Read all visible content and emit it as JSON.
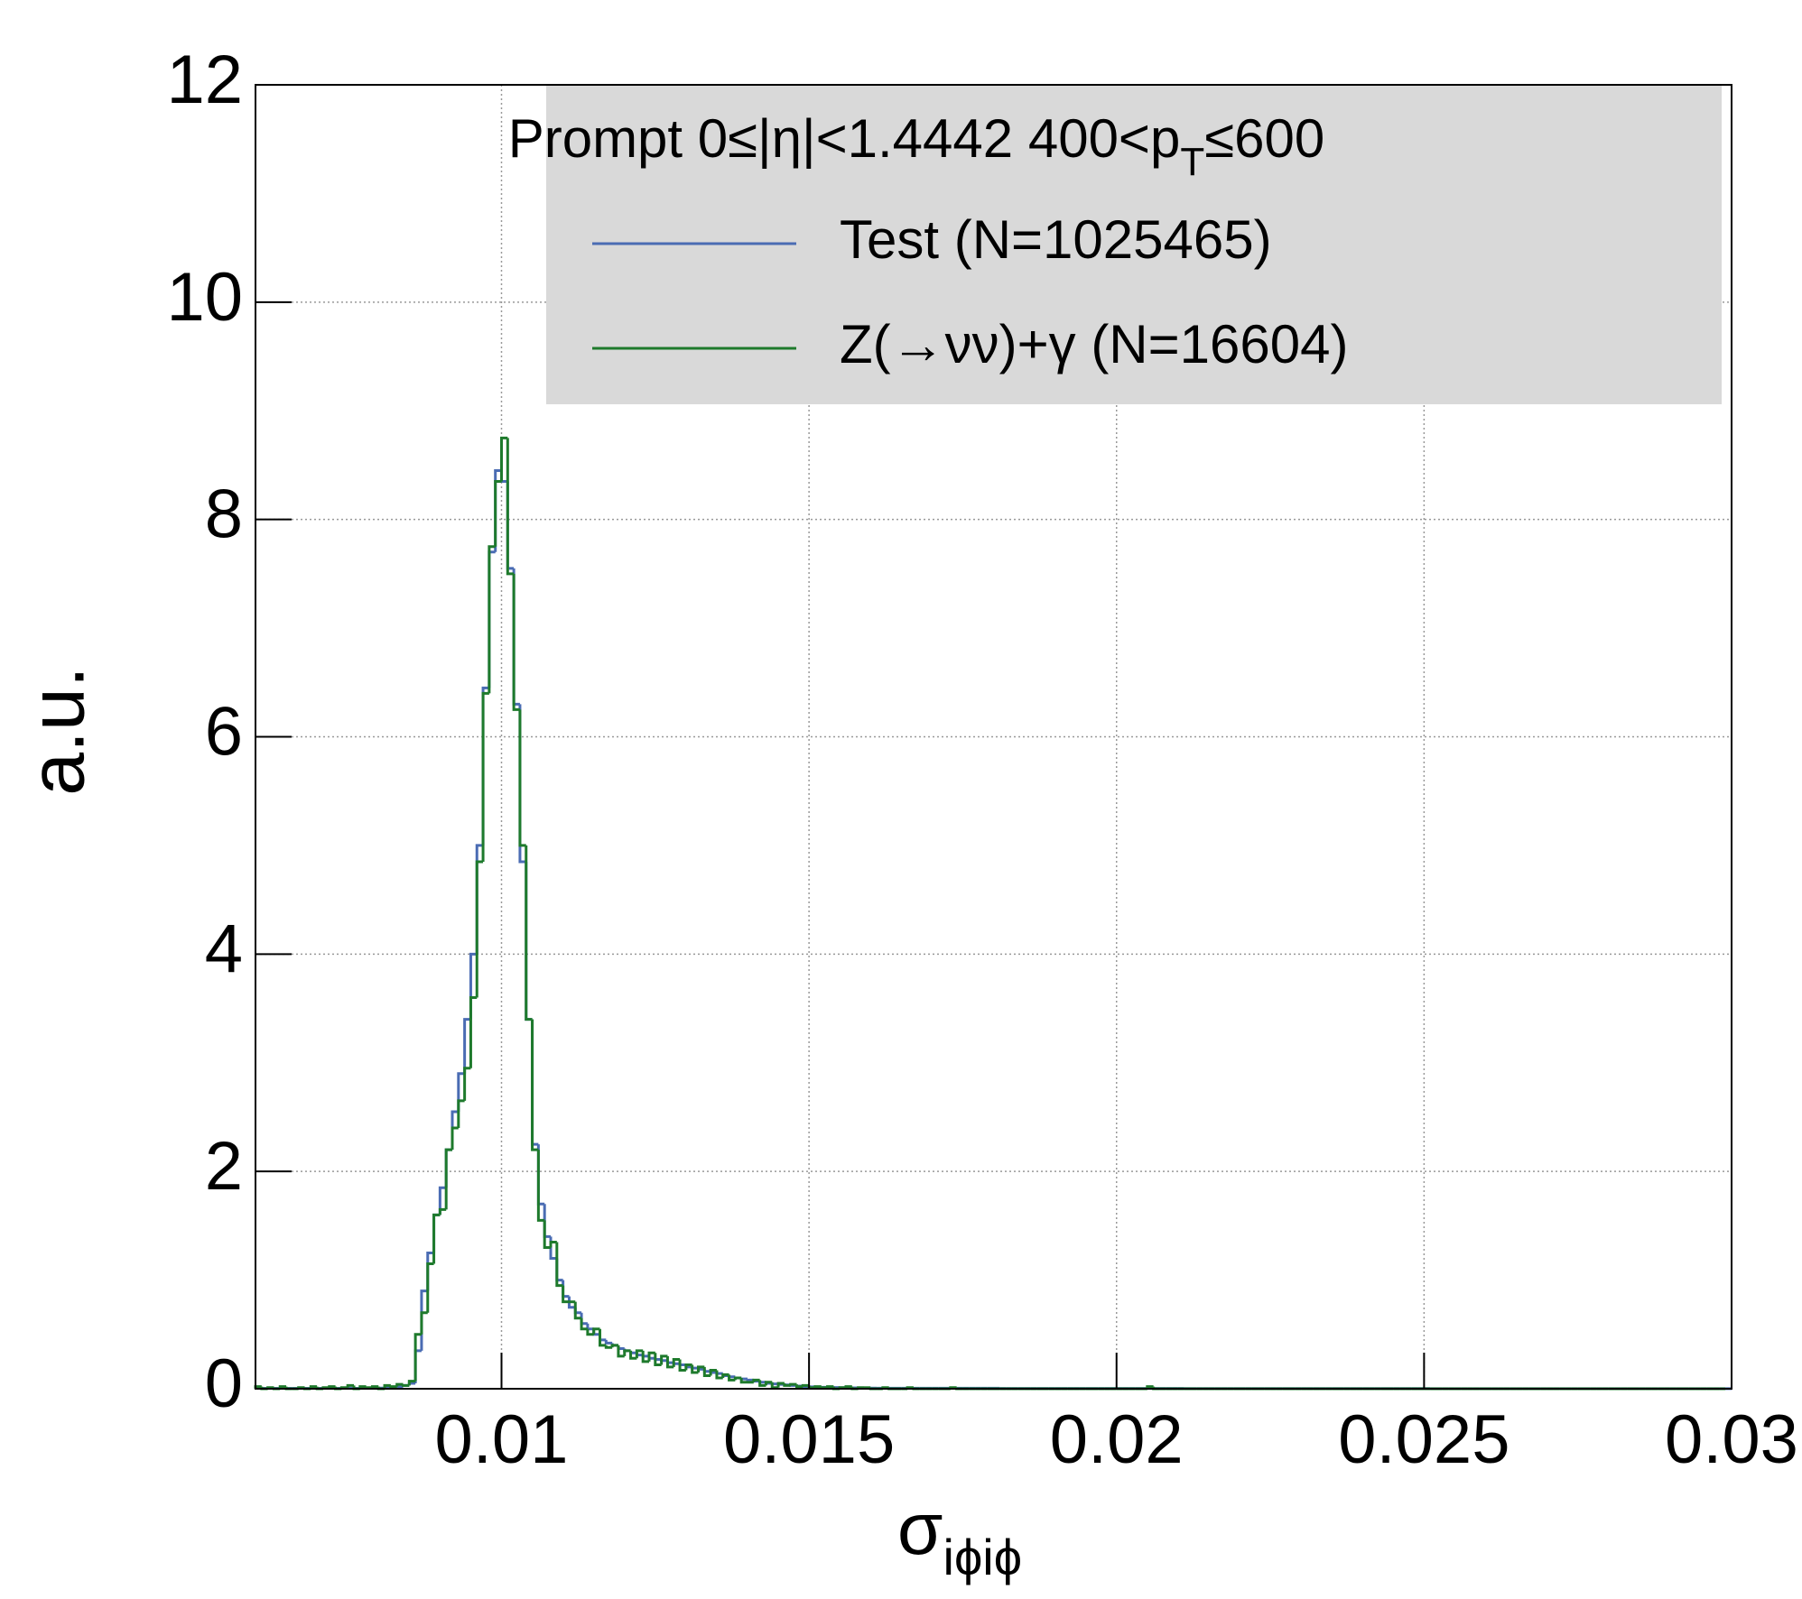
{
  "chart_data": {
    "type": "histogram",
    "ylabel": "a.u.",
    "xlabel": "σ",
    "xlabel_sub": "iϕiϕ",
    "legend_header": "Prompt  0≤|η|<1.4442  400<p",
    "legend_header_sub": "T",
    "legend_header_tail": "≤600",
    "xlim": [
      0.006,
      0.03
    ],
    "ylim": [
      0,
      12
    ],
    "xticks": [
      0.01,
      0.015,
      0.02,
      0.025,
      0.03
    ],
    "yticks": [
      0,
      2,
      4,
      6,
      8,
      10,
      12
    ],
    "grid": true,
    "bins": [
      0.006,
      0.0061,
      0.0062,
      0.0063,
      0.0064,
      0.0065,
      0.0066,
      0.0067,
      0.0068,
      0.0069,
      0.007,
      0.0071,
      0.0072,
      0.0073,
      0.0074,
      0.0075,
      0.0076,
      0.0077,
      0.0078,
      0.0079,
      0.008,
      0.0081,
      0.0082,
      0.0083,
      0.0084,
      0.0085,
      0.0086,
      0.0087,
      0.0088,
      0.0089,
      0.009,
      0.0091,
      0.0092,
      0.0093,
      0.0094,
      0.0095,
      0.0096,
      0.0097,
      0.0098,
      0.0099,
      0.01,
      0.0101,
      0.0102,
      0.0103,
      0.0104,
      0.0105,
      0.0106,
      0.0107,
      0.0108,
      0.0109,
      0.011,
      0.0111,
      0.0112,
      0.0113,
      0.0114,
      0.0115,
      0.0116,
      0.0117,
      0.0118,
      0.0119,
      0.012,
      0.0121,
      0.0122,
      0.0123,
      0.0124,
      0.0125,
      0.0126,
      0.0127,
      0.0128,
      0.0129,
      0.013,
      0.0131,
      0.0132,
      0.0133,
      0.0134,
      0.0135,
      0.0136,
      0.0137,
      0.0138,
      0.0139,
      0.014,
      0.0141,
      0.0142,
      0.0143,
      0.0144,
      0.0145,
      0.0146,
      0.0147,
      0.0148,
      0.0149,
      0.015,
      0.0151,
      0.0152,
      0.0153,
      0.0154,
      0.0155,
      0.0156,
      0.0157,
      0.0158,
      0.0159,
      0.016,
      0.0161,
      0.0162,
      0.0163,
      0.0164,
      0.0165,
      0.0166,
      0.0167,
      0.0168,
      0.0169,
      0.017,
      0.0171,
      0.0172,
      0.0173,
      0.0174,
      0.0175,
      0.0176,
      0.0177,
      0.0178,
      0.0179,
      0.018,
      0.0181,
      0.0182,
      0.0183,
      0.0184,
      0.0185,
      0.0186,
      0.0187,
      0.0188,
      0.0189,
      0.019,
      0.0191,
      0.0192,
      0.0193,
      0.0194,
      0.0195,
      0.0196,
      0.0197,
      0.0198,
      0.0199,
      0.02,
      0.0201,
      0.0202,
      0.0203,
      0.0204,
      0.0205,
      0.0206,
      0.0207,
      0.0208,
      0.0209,
      0.021,
      0.0211,
      0.0212,
      0.0213,
      0.0214,
      0.0215,
      0.0216,
      0.0217,
      0.0218,
      0.0219,
      0.022,
      0.0221,
      0.0222,
      0.0223,
      0.0224,
      0.0225,
      0.0226,
      0.0227,
      0.0228,
      0.0229,
      0.023,
      0.0231,
      0.0232,
      0.0233,
      0.0234,
      0.0235,
      0.0236,
      0.0237,
      0.0238,
      0.0239,
      0.024,
      0.0241,
      0.0242,
      0.0243,
      0.0244,
      0.0245,
      0.0246,
      0.0247,
      0.0248,
      0.0249,
      0.025,
      0.0251,
      0.0252,
      0.0253,
      0.0254,
      0.0255,
      0.0256,
      0.0257,
      0.0258,
      0.0259,
      0.026,
      0.0261,
      0.0262,
      0.0263,
      0.0264,
      0.0265,
      0.0266,
      0.0267,
      0.0268,
      0.0269,
      0.027,
      0.0271,
      0.0272,
      0.0273,
      0.0274,
      0.0275,
      0.0276,
      0.0277,
      0.0278,
      0.0279,
      0.028,
      0.0281,
      0.0282,
      0.0283,
      0.0284,
      0.0285,
      0.0286,
      0.0287,
      0.0288,
      0.0289,
      0.029,
      0.0291,
      0.0292,
      0.0293,
      0.0294,
      0.0295,
      0.0296,
      0.0297,
      0.0298,
      0.0299,
      0.03
    ],
    "series": [
      {
        "name": "Test (N=1025465)",
        "color": "#4a6cb3",
        "values": [
          0.004,
          0.004,
          0.004,
          0.004,
          0.004,
          0.004,
          0.004,
          0.004,
          0.004,
          0.004,
          0.004,
          0.004,
          0.004,
          0.004,
          0.004,
          0.004,
          0.004,
          0.004,
          0.004,
          0.004,
          0.006,
          0.01,
          0.015,
          0.02,
          0.03,
          0.05,
          0.35,
          0.9,
          1.25,
          1.6,
          1.85,
          2.2,
          2.55,
          2.9,
          3.4,
          4.0,
          5.0,
          6.45,
          7.7,
          8.45,
          8.35,
          7.55,
          6.3,
          4.85,
          3.4,
          2.25,
          1.7,
          1.4,
          1.2,
          1.0,
          0.85,
          0.75,
          0.7,
          0.6,
          0.55,
          0.5,
          0.45,
          0.42,
          0.4,
          0.37,
          0.35,
          0.33,
          0.31,
          0.3,
          0.28,
          0.27,
          0.26,
          0.24,
          0.23,
          0.22,
          0.2,
          0.19,
          0.18,
          0.16,
          0.15,
          0.14,
          0.12,
          0.11,
          0.1,
          0.09,
          0.08,
          0.07,
          0.06,
          0.05,
          0.045,
          0.04,
          0.035,
          0.03,
          0.025,
          0.02,
          0.018,
          0.016,
          0.014,
          0.012,
          0.011,
          0.01,
          0.009,
          0.008,
          0.007,
          0.006,
          0.006,
          0.005,
          0.005,
          0.005,
          0.005,
          0.005,
          0.005,
          0.005,
          0.005,
          0.005,
          0.005,
          0.005,
          0.005,
          0.005,
          0.005,
          0.005,
          0.005,
          0.005,
          0.005,
          0.005,
          0.005,
          0.003,
          0.003,
          0.003,
          0.003,
          0.003,
          0.003,
          0.003,
          0.003,
          0.003,
          0.003,
          0.003,
          0.003,
          0.003,
          0.003,
          0.003,
          0.003,
          0.003,
          0.003,
          0.003,
          0.003,
          0.003,
          0.003,
          0.003,
          0.003,
          0.003,
          0.003,
          0.003,
          0.003,
          0.003,
          0.003,
          0.002,
          0.002,
          0.002,
          0.002,
          0.002,
          0.002,
          0.002,
          0.002,
          0.002,
          0.002,
          0.002,
          0.002,
          0.002,
          0.002,
          0.002,
          0.002,
          0.002,
          0.002,
          0.002,
          0.002,
          0.002,
          0.002,
          0.002,
          0.002,
          0.002,
          0.002,
          0.002,
          0.002,
          0.002,
          0.002,
          0.002,
          0.002,
          0.002,
          0.002,
          0.002,
          0.002,
          0.002,
          0.002,
          0.002,
          0.002,
          0.001,
          0.001,
          0.001,
          0.001,
          0.001,
          0.001,
          0.001,
          0.001,
          0.001,
          0.001,
          0.001,
          0.001,
          0.001,
          0.001,
          0.001,
          0.001,
          0.001,
          0.001,
          0.001,
          0.001,
          0.001,
          0.001,
          0.001,
          0.001,
          0.001,
          0.001,
          0.001,
          0.001,
          0.001,
          0.001,
          0.001,
          0.001,
          0.001,
          0.001,
          0.001,
          0.001,
          0.001,
          0.001,
          0.001,
          0.001,
          0.001,
          0.001,
          0.001,
          0.001,
          0.001,
          0.001,
          0.001,
          0.001,
          0.001
        ]
      },
      {
        "name": "Z(→νν)+γ (N=16604)",
        "color": "#1e7a2c",
        "values": [
          0.02,
          0,
          0.01,
          0,
          0.02,
          0,
          0,
          0.01,
          0,
          0.02,
          0,
          0.01,
          0.02,
          0,
          0.01,
          0.03,
          0,
          0.02,
          0.01,
          0.02,
          0,
          0.03,
          0.02,
          0.04,
          0.03,
          0.07,
          0.5,
          0.7,
          1.15,
          1.6,
          1.65,
          2.2,
          2.4,
          2.65,
          2.95,
          3.6,
          4.85,
          6.4,
          7.75,
          8.35,
          8.75,
          7.5,
          6.25,
          5.0,
          3.4,
          2.2,
          1.55,
          1.3,
          1.35,
          0.95,
          0.8,
          0.8,
          0.65,
          0.55,
          0.5,
          0.55,
          0.4,
          0.38,
          0.4,
          0.3,
          0.35,
          0.28,
          0.35,
          0.25,
          0.33,
          0.22,
          0.3,
          0.2,
          0.27,
          0.17,
          0.22,
          0.15,
          0.2,
          0.12,
          0.17,
          0.1,
          0.13,
          0.08,
          0.1,
          0.06,
          0.06,
          0.08,
          0.03,
          0.06,
          0.01,
          0.05,
          0.03,
          0.04,
          0.02,
          0.03,
          0.01,
          0.02,
          0.01,
          0.02,
          0,
          0.01,
          0.02,
          0,
          0.01,
          0.01,
          0,
          0,
          0.01,
          0,
          0,
          0,
          0.01,
          0,
          0,
          0,
          0,
          0,
          0,
          0.01,
          0,
          0,
          0,
          0,
          0,
          0,
          0,
          0,
          0,
          0,
          0,
          0,
          0,
          0,
          0,
          0,
          0,
          0,
          0,
          0,
          0,
          0,
          0,
          0,
          0,
          0,
          0,
          0,
          0,
          0,
          0,
          0.02,
          0,
          0,
          0,
          0,
          0,
          0,
          0,
          0,
          0,
          0,
          0,
          0,
          0,
          0,
          0,
          0,
          0,
          0,
          0,
          0,
          0,
          0,
          0,
          0,
          0,
          0,
          0,
          0,
          0,
          0,
          0,
          0,
          0,
          0,
          0,
          0,
          0,
          0,
          0,
          0,
          0,
          0,
          0,
          0,
          0,
          0,
          0,
          0,
          0,
          0,
          0,
          0,
          0,
          0,
          0,
          0,
          0,
          0,
          0,
          0,
          0,
          0,
          0,
          0,
          0,
          0,
          0,
          0,
          0,
          0,
          0,
          0,
          0,
          0,
          0,
          0,
          0,
          0,
          0,
          0,
          0,
          0,
          0,
          0,
          0,
          0,
          0,
          0,
          0,
          0,
          0,
          0,
          0
        ]
      }
    ]
  }
}
